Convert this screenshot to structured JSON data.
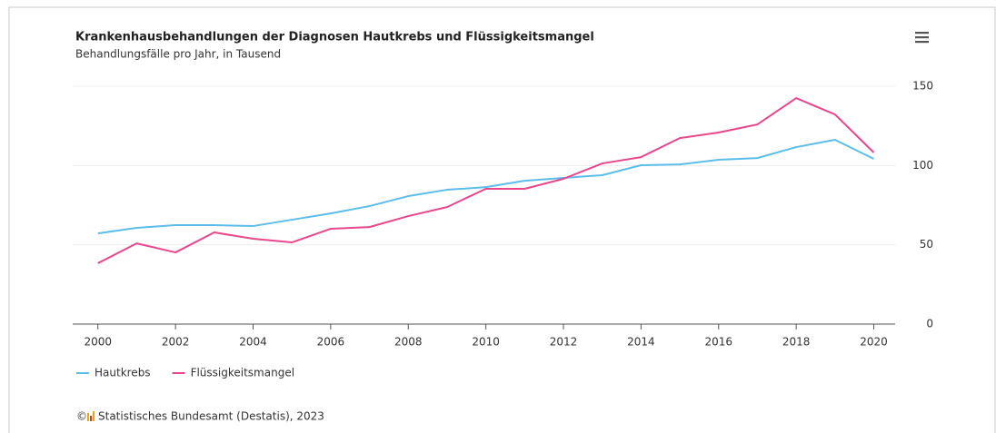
{
  "chart_data": {
    "type": "line",
    "title": "Krankenhausbehandlungen der Diagnosen Hautkrebs und Flüssigkeitsmangel",
    "subtitle": "Behandlungsfälle pro Jahr, in Tausend",
    "x": [
      2000,
      2001,
      2002,
      2003,
      2004,
      2005,
      2006,
      2007,
      2008,
      2009,
      2010,
      2011,
      2012,
      2013,
      2014,
      2015,
      2016,
      2017,
      2018,
      2019,
      2020
    ],
    "series": [
      {
        "name": "Hautkrebs",
        "color": "#5bbde8",
        "values": [
          57.2,
          60.7,
          62.4,
          62.4,
          61.8,
          65.8,
          69.8,
          74.4,
          80.7,
          84.7,
          86.4,
          90.4,
          92.2,
          93.9,
          100.2,
          100.7,
          103.6,
          104.7,
          111.6,
          116.2,
          104.2
        ]
      },
      {
        "name": "Flüssigkeitsmangel",
        "color": "#e8478c",
        "values": [
          38.4,
          50.9,
          45.2,
          57.8,
          53.8,
          51.5,
          60.1,
          61.2,
          68.1,
          73.8,
          85.3,
          85.3,
          91.6,
          101.3,
          105.3,
          117.3,
          120.8,
          125.9,
          142.5,
          132.2,
          108.2
        ]
      }
    ],
    "xlim": [
      1999.35,
      2020.55
    ],
    "xticks": [
      2000,
      2002,
      2004,
      2006,
      2008,
      2010,
      2012,
      2014,
      2016,
      2018,
      2020
    ],
    "ylim": [
      0,
      150
    ],
    "yticks": [
      0,
      50,
      100,
      150
    ],
    "grid": true,
    "legend": "bottom",
    "copyright": "©",
    "credit": "Statistisches Bundesamt (Destatis), 2023"
  }
}
